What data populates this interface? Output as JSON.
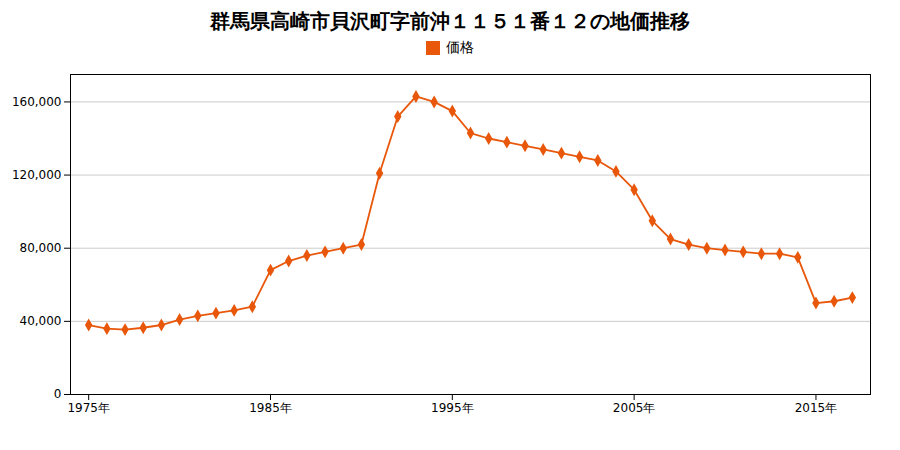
{
  "chart_data": {
    "type": "line",
    "title": "群馬県高崎市貝沢町字前沖１１５１番１２の地価推移",
    "x": [
      1975,
      1976,
      1977,
      1978,
      1979,
      1980,
      1981,
      1982,
      1983,
      1984,
      1985,
      1986,
      1987,
      1988,
      1989,
      1990,
      1991,
      1992,
      1993,
      1994,
      1995,
      1996,
      1997,
      1998,
      1999,
      2000,
      2001,
      2002,
      2003,
      2004,
      2005,
      2006,
      2007,
      2008,
      2009,
      2010,
      2011,
      2012,
      2013,
      2014,
      2015,
      2016,
      2017
    ],
    "series": [
      {
        "name": "価格",
        "color": "#e8570a",
        "marker": "diamond",
        "values": [
          38000,
          36000,
          35500,
          36500,
          38000,
          41000,
          43000,
          44500,
          46000,
          48000,
          68000,
          73000,
          76000,
          78000,
          80000,
          82000,
          121000,
          152000,
          163000,
          160000,
          155000,
          143000,
          140000,
          138000,
          136000,
          134000,
          132000,
          130000,
          128000,
          122000,
          112000,
          95000,
          85000,
          82000,
          80000,
          79000,
          78000,
          77000,
          77000,
          75000,
          50000,
          51000,
          53000
        ]
      }
    ],
    "xlim": [
      1974,
      2018
    ],
    "xticks": [
      {
        "value": 1975,
        "label": "1975年"
      },
      {
        "value": 1985,
        "label": "1985年"
      },
      {
        "value": 1995,
        "label": "1995年"
      },
      {
        "value": 2005,
        "label": "2005年"
      },
      {
        "value": 2015,
        "label": "2015年"
      }
    ],
    "ylim": [
      0,
      175000
    ],
    "yticks": [
      0,
      {
        "value": 40000,
        "label": "40,000"
      },
      {
        "value": 80000,
        "label": "80,000"
      },
      {
        "value": 120000,
        "label": "120,000"
      },
      {
        "value": 160000,
        "label": "160,000"
      }
    ],
    "grid": "y",
    "legend": "top"
  }
}
